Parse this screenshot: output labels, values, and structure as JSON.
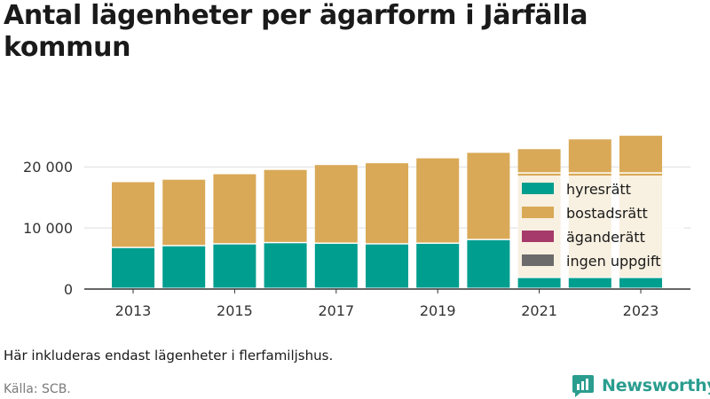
{
  "title": "Antal lägenheter per ägarform i Järfälla kommun",
  "note": "Här inkluderas endast lägenheter i flerfamiljshus.",
  "source": "Källa: SCB.",
  "brand": {
    "name": "Newsworthy",
    "color": "#2a9d8f"
  },
  "chart_data": {
    "type": "bar",
    "stacked": true,
    "categories": [
      "2013",
      "2014",
      "2015",
      "2016",
      "2017",
      "2018",
      "2019",
      "2020",
      "2021",
      "2022",
      "2023"
    ],
    "x_tick_labels": [
      "2013",
      "2015",
      "2017",
      "2019",
      "2021",
      "2023"
    ],
    "series": [
      {
        "name": "hyresrätt",
        "color": "#009e8f",
        "values": [
          6700,
          7000,
          7300,
          7500,
          7400,
          7300,
          7400,
          8000,
          1800,
          1800,
          1800
        ]
      },
      {
        "name": "bostadsrätt",
        "color": "#d9a957",
        "values": [
          10800,
          10900,
          11500,
          12000,
          12900,
          13300,
          14000,
          14300,
          17100,
          17100,
          17100
        ]
      },
      {
        "name": "äganderätt",
        "color": "#a63a6a",
        "values": [
          0,
          0,
          0,
          0,
          0,
          0,
          0,
          0,
          0,
          0,
          0
        ]
      },
      {
        "name": "ingen uppgift",
        "color": "#6b6b6b",
        "values": [
          0,
          0,
          0,
          0,
          0,
          0,
          0,
          0,
          0,
          0,
          0
        ]
      }
    ],
    "extra_segments": {
      "2021": [
        {
          "value": 4000,
          "color": "#d9a957"
        }
      ],
      "2022": [
        {
          "value": 5600,
          "color": "#d9a957"
        }
      ],
      "2023": [
        {
          "value": 6200,
          "color": "#d9a957"
        }
      ]
    },
    "y_ticks": [
      0,
      10000,
      20000
    ],
    "y_tick_labels": [
      "0",
      "10 000",
      "20 000"
    ],
    "ylim": [
      0,
      27000
    ],
    "grid": true,
    "legend_position": "right"
  }
}
